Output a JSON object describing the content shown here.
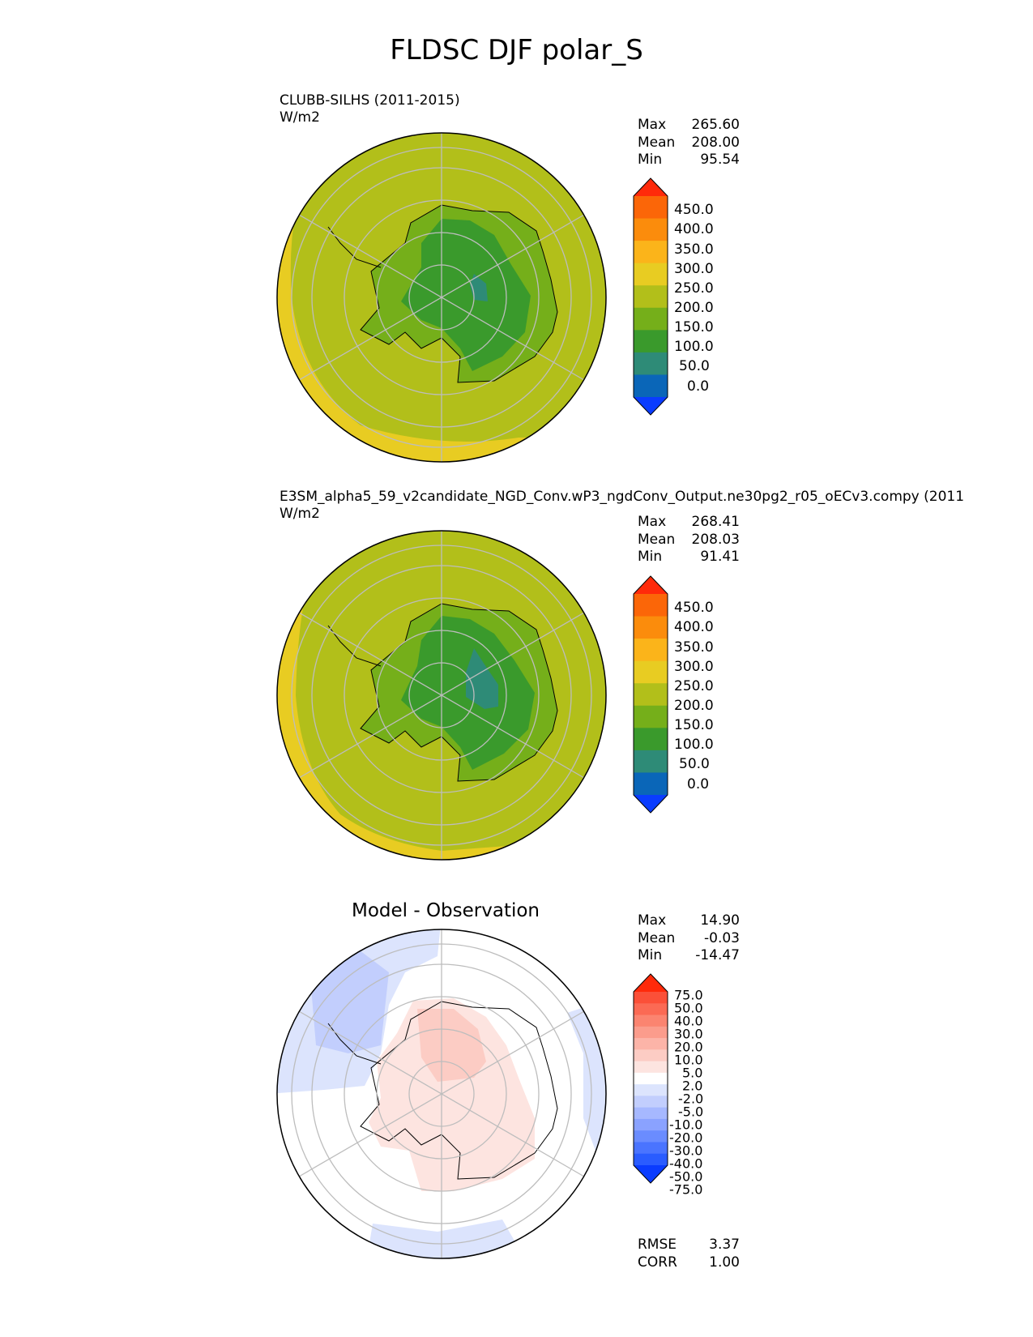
{
  "figure": {
    "title": "FLDSC DJF polar_S"
  },
  "panels": [
    {
      "title_line1": "CLUBB-SILHS (2011-2015)",
      "title_line2": "W/m2",
      "stats": [
        {
          "label": "Max",
          "value": "265.60"
        },
        {
          "label": "Mean",
          "value": "208.00"
        },
        {
          "label": "Min",
          "value": "95.54"
        }
      ],
      "colorbar": {
        "ticks": [
          "450.0",
          "400.0",
          "350.0",
          "300.0",
          "250.0",
          "200.0",
          "150.0",
          "100.0",
          "50.0",
          "0.0"
        ],
        "colors": [
          "#0040ff",
          "#0a66b8",
          "#2e8b77",
          "#3a9a2c",
          "#75af1a",
          "#b2bf1a",
          "#e8cc22",
          "#fbb41a",
          "#fb8c0c",
          "#fb6608",
          "#ff3a0a"
        ],
        "extend_low": "#0a3cff",
        "extend_high": "#ff2a0a"
      },
      "map_colors": {
        "ocean": "#b2bf1a",
        "ring": "#e8cc22",
        "land_edge": "#75af1a",
        "interior": "#3a9a2c",
        "core": "#2e8b77"
      }
    },
    {
      "title_line1": "E3SM_alpha5_59_v2candidate_NGD_Conv.wP3_ngdConv_Output.ne30pg2_r05_oECv3.compy (2011",
      "title_line2": "W/m2",
      "stats": [
        {
          "label": "Max",
          "value": "268.41"
        },
        {
          "label": "Mean",
          "value": "208.03"
        },
        {
          "label": "Min",
          "value": "91.41"
        }
      ],
      "colorbar": {
        "ticks": [
          "450.0",
          "400.0",
          "350.0",
          "300.0",
          "250.0",
          "200.0",
          "150.0",
          "100.0",
          "50.0",
          "0.0"
        ],
        "colors": [
          "#0040ff",
          "#0a66b8",
          "#2e8b77",
          "#3a9a2c",
          "#75af1a",
          "#b2bf1a",
          "#e8cc22",
          "#fbb41a",
          "#fb8c0c",
          "#fb6608",
          "#ff3a0a"
        ],
        "extend_low": "#0a3cff",
        "extend_high": "#ff2a0a"
      },
      "map_colors": {
        "ocean": "#b2bf1a",
        "ring": "#e8cc22",
        "land_edge": "#75af1a",
        "interior": "#3a9a2c",
        "core": "#2e8b77"
      }
    },
    {
      "title": "Model - Observation",
      "stats": [
        {
          "label": "Max",
          "value": "14.90"
        },
        {
          "label": "Mean",
          "value": "-0.03"
        },
        {
          "label": "Min",
          "value": "-14.47"
        }
      ],
      "colorbar": {
        "ticks": [
          "75.0",
          "50.0",
          "40.0",
          "30.0",
          "20.0",
          "10.0",
          "5.0",
          "2.0",
          "-2.0",
          "-5.0",
          "-10.0",
          "-20.0",
          "-30.0",
          "-40.0",
          "-50.0",
          "-75.0"
        ],
        "colors": [
          "#0a3cff",
          "#2a5cff",
          "#4a74ff",
          "#6a8cff",
          "#8aa2ff",
          "#a6b8ff",
          "#c2cefd",
          "#dce4fd",
          "#ffffff",
          "#fde4e0",
          "#fcccc4",
          "#fcb4a8",
          "#fb9c8c",
          "#fb8470",
          "#fb6a54",
          "#fb5038",
          "#ff2a0a"
        ],
        "extend_low": "#0a3cff",
        "extend_high": "#ff2a0a"
      },
      "error_stats": [
        {
          "label": "RMSE",
          "value": "3.37"
        },
        {
          "label": "CORR",
          "value": "1.00"
        }
      ],
      "map_colors": {
        "ocean": "#ffffff",
        "neg": "#dce4fd",
        "neg_strong": "#c2cefd",
        "pos": "#fde4e0",
        "pos_strong": "#fcccc4"
      }
    }
  ]
}
